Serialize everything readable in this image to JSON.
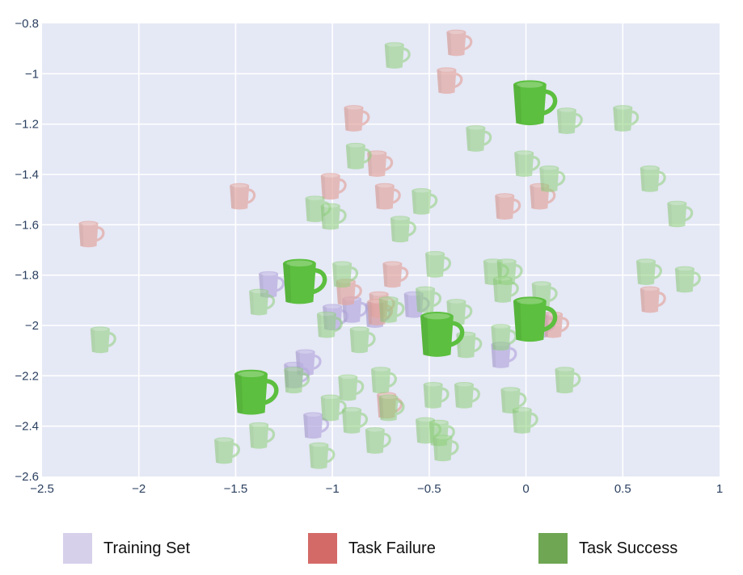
{
  "chart_data": {
    "type": "scatter",
    "title": "",
    "xlabel": "",
    "ylabel": "",
    "xlim": [
      -2.5,
      1
    ],
    "ylim": [
      -2.6,
      -0.8
    ],
    "x_ticks": [
      "−2.5",
      "−2",
      "−1.5",
      "−1",
      "−0.5",
      "0",
      "0.5",
      "1"
    ],
    "y_ticks": [
      "−0.8",
      "−1",
      "−1.2",
      "−1.4",
      "−1.6",
      "−1.8",
      "−2",
      "−2.2",
      "−2.4",
      "−2.6"
    ],
    "grid": true,
    "marker": "mug",
    "legend_position": "bottom",
    "series": [
      {
        "name": "Training Set",
        "color": "#d7d0ea",
        "points": [
          {
            "x": -1.33,
            "y": -1.84
          },
          {
            "x": -1.0,
            "y": -1.97
          },
          {
            "x": -0.9,
            "y": -1.94
          },
          {
            "x": -1.2,
            "y": -2.2
          },
          {
            "x": -1.14,
            "y": -2.15
          },
          {
            "x": -1.1,
            "y": -2.4
          },
          {
            "x": -0.58,
            "y": -1.92
          },
          {
            "x": -0.13,
            "y": -2.12
          },
          {
            "x": 0.07,
            "y": -2.0
          },
          {
            "x": -0.78,
            "y": -1.96
          }
        ]
      },
      {
        "name": "Task Failure",
        "color": "#d46a68",
        "points": [
          {
            "x": -0.36,
            "y": -0.88
          },
          {
            "x": -0.41,
            "y": -1.03
          },
          {
            "x": -0.89,
            "y": -1.18
          },
          {
            "x": -0.77,
            "y": -1.36
          },
          {
            "x": -1.01,
            "y": -1.45
          },
          {
            "x": -0.73,
            "y": -1.49
          },
          {
            "x": -1.48,
            "y": -1.49
          },
          {
            "x": -0.11,
            "y": -1.53
          },
          {
            "x": 0.07,
            "y": -1.49
          },
          {
            "x": -2.26,
            "y": -1.64
          },
          {
            "x": -0.69,
            "y": -1.8
          },
          {
            "x": -0.76,
            "y": -1.92
          },
          {
            "x": -0.93,
            "y": -1.87
          },
          {
            "x": 0.14,
            "y": -2.0
          },
          {
            "x": 0.64,
            "y": -1.9
          },
          {
            "x": -0.72,
            "y": -2.32
          },
          {
            "x": -0.77,
            "y": -1.95
          }
        ]
      },
      {
        "name": "Task Success",
        "color": "#6fa653",
        "points": [
          {
            "x": -0.68,
            "y": -0.93
          },
          {
            "x": -0.26,
            "y": -1.26
          },
          {
            "x": 0.21,
            "y": -1.19
          },
          {
            "x": 0.5,
            "y": -1.18
          },
          {
            "x": -0.88,
            "y": -1.33
          },
          {
            "x": -0.01,
            "y": -1.36
          },
          {
            "x": 0.12,
            "y": -1.42
          },
          {
            "x": 0.64,
            "y": -1.42
          },
          {
            "x": -0.54,
            "y": -1.51
          },
          {
            "x": -1.09,
            "y": -1.54
          },
          {
            "x": -1.01,
            "y": -1.57
          },
          {
            "x": -0.65,
            "y": -1.62
          },
          {
            "x": 0.78,
            "y": -1.56
          },
          {
            "x": -0.47,
            "y": -1.76
          },
          {
            "x": -0.17,
            "y": -1.79
          },
          {
            "x": -0.1,
            "y": -1.79
          },
          {
            "x": 0.62,
            "y": -1.79
          },
          {
            "x": 0.82,
            "y": -1.82
          },
          {
            "x": -0.95,
            "y": -1.8
          },
          {
            "x": -0.12,
            "y": -1.86
          },
          {
            "x": -1.38,
            "y": -1.91
          },
          {
            "x": 0.08,
            "y": -1.88
          },
          {
            "x": -0.52,
            "y": -1.9
          },
          {
            "x": -0.36,
            "y": -1.95
          },
          {
            "x": -0.71,
            "y": -1.94
          },
          {
            "x": -1.03,
            "y": -2.0
          },
          {
            "x": -0.13,
            "y": -2.05
          },
          {
            "x": -0.86,
            "y": -2.06
          },
          {
            "x": -0.31,
            "y": -2.08
          },
          {
            "x": -2.2,
            "y": -2.06
          },
          {
            "x": -0.75,
            "y": -2.22
          },
          {
            "x": -0.92,
            "y": -2.25
          },
          {
            "x": -0.48,
            "y": -2.28
          },
          {
            "x": -0.32,
            "y": -2.28
          },
          {
            "x": -0.08,
            "y": -2.3
          },
          {
            "x": 0.2,
            "y": -2.22
          },
          {
            "x": -1.2,
            "y": -2.22
          },
          {
            "x": -1.01,
            "y": -2.33
          },
          {
            "x": -0.9,
            "y": -2.38
          },
          {
            "x": -0.71,
            "y": -2.33
          },
          {
            "x": -0.02,
            "y": -2.38
          },
          {
            "x": -0.45,
            "y": -2.43
          },
          {
            "x": -0.78,
            "y": -2.46
          },
          {
            "x": -1.38,
            "y": -2.44
          },
          {
            "x": -1.56,
            "y": -2.5
          },
          {
            "x": -1.07,
            "y": -2.52
          },
          {
            "x": -0.43,
            "y": -2.49
          },
          {
            "x": -0.52,
            "y": -2.42
          }
        ],
        "highlighted": [
          {
            "x": 0.02,
            "y": -1.12
          },
          {
            "x": -1.17,
            "y": -1.83
          },
          {
            "x": 0.02,
            "y": -1.98
          },
          {
            "x": -0.46,
            "y": -2.04
          },
          {
            "x": -1.42,
            "y": -2.27
          }
        ]
      }
    ]
  },
  "legend": {
    "items": [
      {
        "label": "Training Set",
        "color": "#d7d0ea"
      },
      {
        "label": "Task Failure",
        "color": "#d46a68"
      },
      {
        "label": "Task Success",
        "color": "#6fa653"
      }
    ]
  }
}
